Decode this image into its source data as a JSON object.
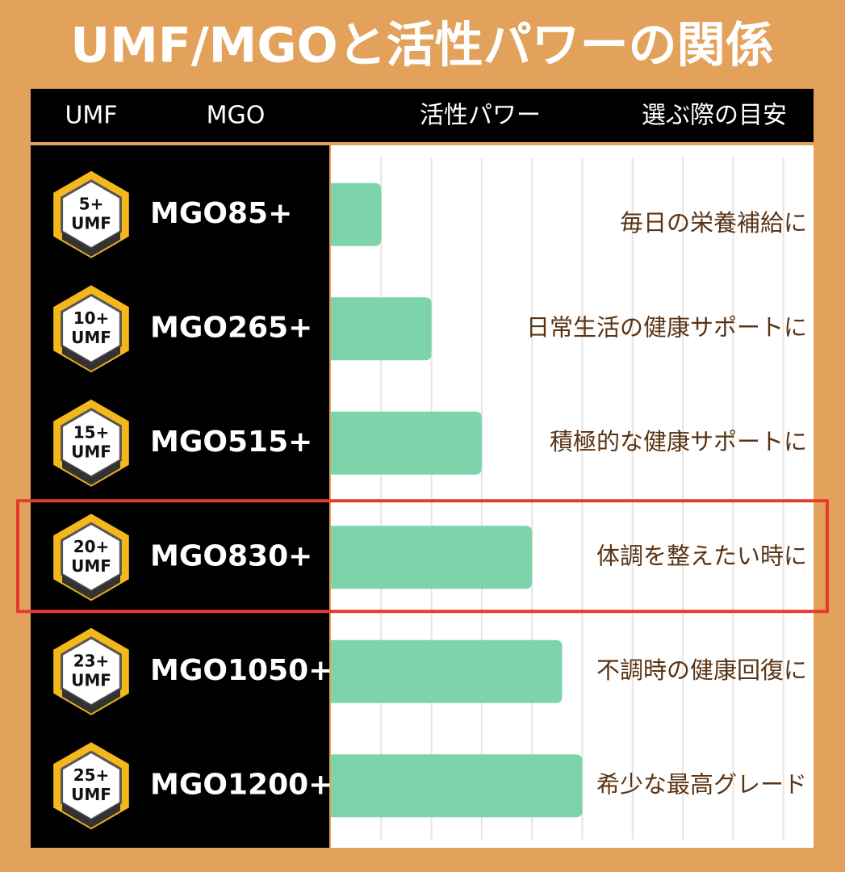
{
  "chart_data": {
    "type": "bar",
    "orientation": "horizontal",
    "title": "UMF/MGOと活性パワーの関係",
    "columns": [
      "UMF",
      "MGO",
      "活性パワー",
      "選ぶ際の目安"
    ],
    "badges": [
      {
        "grade": "5+",
        "label": "UMF"
      },
      {
        "grade": "10+",
        "label": "UMF"
      },
      {
        "grade": "15+",
        "label": "UMF"
      },
      {
        "grade": "20+",
        "label": "UMF"
      },
      {
        "grade": "23+",
        "label": "UMF"
      },
      {
        "grade": "25+",
        "label": "UMF"
      }
    ],
    "categories": [
      "MGO85+",
      "MGO265+",
      "MGO515+",
      "MGO830+",
      "MGO1050+",
      "MGO1200+"
    ],
    "notes": [
      "毎日の栄養補給に",
      "日常生活の健康サポートに",
      "積極的な健康サポートに",
      "体調を整えたい時に",
      "不調時の健康回復に",
      "希少な最高グレード"
    ],
    "values": [
      1,
      2,
      3,
      4,
      4.6,
      5
    ],
    "xlim": [
      0,
      9.6
    ],
    "color": "#7dd3aa",
    "grid": true,
    "highlight": 3
  }
}
